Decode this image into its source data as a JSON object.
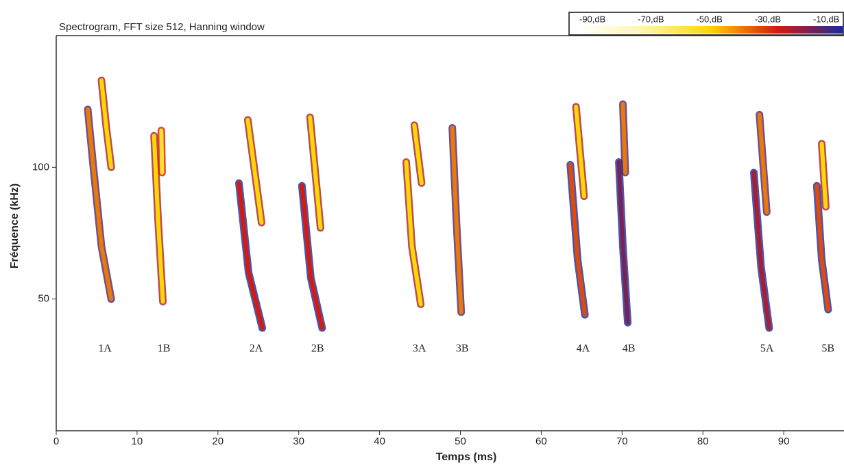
{
  "chart_data": {
    "type": "spectrogram",
    "title": "Spectrogram, FFT size 512, Hanning window",
    "x_label": "Temps (ms)",
    "y_label": "Fréquence (kHz)",
    "xlim": [
      0,
      97.5
    ],
    "xticks": [
      0,
      10,
      20,
      30,
      40,
      50,
      60,
      70,
      80,
      90
    ],
    "ylim": [
      0,
      150
    ],
    "yticks": [
      50,
      100
    ],
    "colorbar": {
      "ticks": [
        {
          "value": -90,
          "label": "-90,dB"
        },
        {
          "value": -70,
          "label": "-70,dB"
        },
        {
          "value": -50,
          "label": "-50,dB"
        },
        {
          "value": -30,
          "label": "-30,dB"
        },
        {
          "value": -10,
          "label": "-10,dB"
        }
      ],
      "colors": [
        "#ffffff",
        "#fff6b0",
        "#ffd800",
        "#d81a0c",
        "#1c2a9c"
      ]
    },
    "calls": [
      {
        "name": "1A",
        "streaks": [
          {
            "t": [
              3.9,
              4.6,
              5.6,
              6.8
            ],
            "f": [
              122,
              100,
              70,
              50
            ],
            "level": -40
          },
          {
            "t": [
              5.6,
              6.2,
              6.8
            ],
            "f": [
              133,
              115,
              100
            ],
            "level": -50
          }
        ]
      },
      {
        "name": "1B",
        "streaks": [
          {
            "t": [
              12.1,
              12.6,
              13.2
            ],
            "f": [
              112,
              80,
              49
            ],
            "level": -50
          },
          {
            "t": [
              13.0,
              13.1
            ],
            "f": [
              114,
              98
            ],
            "level": -55
          }
        ]
      },
      {
        "name": "2A",
        "streaks": [
          {
            "t": [
              23.7,
              25.4
            ],
            "f": [
              118,
              79
            ],
            "level": -50
          },
          {
            "t": [
              22.6,
              23.8,
              25.5
            ],
            "f": [
              94,
              60,
              39
            ],
            "level": -30
          }
        ]
      },
      {
        "name": "2B",
        "streaks": [
          {
            "t": [
              31.4,
              32.7
            ],
            "f": [
              119,
              77
            ],
            "level": -50
          },
          {
            "t": [
              30.4,
              31.5,
              32.9
            ],
            "f": [
              93,
              58,
              39
            ],
            "level": -30
          }
        ]
      },
      {
        "name": "3A",
        "streaks": [
          {
            "t": [
              44.3,
              45.2
            ],
            "f": [
              116,
              94
            ],
            "level": -50
          },
          {
            "t": [
              43.3,
              44.0,
              45.1
            ],
            "f": [
              102,
              70,
              48
            ],
            "level": -50
          }
        ]
      },
      {
        "name": "3B",
        "streaks": [
          {
            "t": [
              49.0,
              49.5,
              50.1
            ],
            "f": [
              115,
              80,
              45
            ],
            "level": -40
          }
        ]
      },
      {
        "name": "4A",
        "streaks": [
          {
            "t": [
              64.3,
              65.3
            ],
            "f": [
              123,
              89
            ],
            "level": -50
          },
          {
            "t": [
              63.6,
              64.5,
              65.4
            ],
            "f": [
              101,
              65,
              44
            ],
            "level": -35
          }
        ]
      },
      {
        "name": "4B",
        "streaks": [
          {
            "t": [
              70.1,
              70.4
            ],
            "f": [
              124,
              98
            ],
            "level": -40
          },
          {
            "t": [
              69.6,
              70.1,
              70.7
            ],
            "f": [
              102,
              70,
              41
            ],
            "level": -20
          }
        ]
      },
      {
        "name": "5A",
        "streaks": [
          {
            "t": [
              87.0,
              87.9
            ],
            "f": [
              120,
              83
            ],
            "level": -40
          },
          {
            "t": [
              86.3,
              87.2,
              88.2
            ],
            "f": [
              98,
              62,
              39
            ],
            "level": -25
          }
        ]
      },
      {
        "name": "5B",
        "streaks": [
          {
            "t": [
              94.7,
              95.2
            ],
            "f": [
              109,
              85
            ],
            "level": -50
          },
          {
            "t": [
              94.1,
              94.7,
              95.5
            ],
            "f": [
              93,
              65,
              46
            ],
            "level": -35
          }
        ]
      }
    ]
  }
}
